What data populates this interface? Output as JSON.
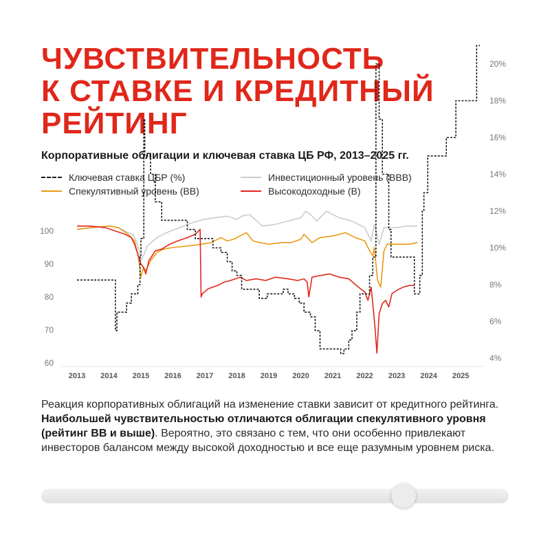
{
  "title_lines": [
    "ЧУВСТВИТЕЛЬНОСТЬ",
    "К СТАВКЕ И КРЕДИТНЫЙ",
    "РЕЙТИНГ"
  ],
  "colors": {
    "accent": "#e0271a",
    "key_rate": "#1a1a1a",
    "bbb": "#c9ccd1",
    "bb": "#ea9a12",
    "b": "#e0271a"
  },
  "chart_data": {
    "type": "line",
    "title": "Корпоративные облигации и ключевая ставка ЦБ РФ, 2013–2025 гг.",
    "legend_position": "top",
    "grid": false,
    "x_ticks": [
      "2013",
      "2014",
      "2015",
      "2016",
      "2017",
      "2018",
      "2019",
      "2020",
      "2021",
      "2022",
      "2023",
      "2024",
      "2025"
    ],
    "y_left_ticks": [
      "60",
      "70",
      "80",
      "90",
      "100"
    ],
    "y_right_ticks": [
      "4%",
      "6%",
      "8%",
      "10%",
      "12%",
      "14%",
      "16%",
      "18%",
      "20%"
    ],
    "y_left_range": [
      60,
      102
    ],
    "y_right_range": [
      4,
      20
    ],
    "x_range": [
      2013,
      2025.6
    ],
    "series": [
      {
        "name": "Ключевая ставка ЦБР (%)",
        "axis": "right",
        "style": "dashed-step",
        "x": [
          2013.0,
          2013.65,
          2014.2,
          2014.25,
          2014.55,
          2014.7,
          2014.9,
          2014.97,
          2015.0,
          2015.09,
          2015.12,
          2015.3,
          2015.45,
          2015.65,
          2016.45,
          2016.7,
          2017.25,
          2017.5,
          2017.7,
          2017.85,
          2018.0,
          2018.15,
          2018.7,
          2018.95,
          2019.45,
          2019.6,
          2019.8,
          2019.95,
          2020.1,
          2020.3,
          2020.45,
          2020.6,
          2021.25,
          2021.35,
          2021.5,
          2021.6,
          2021.75,
          2021.85,
          2022.15,
          2022.25,
          2022.35,
          2022.45,
          2022.55,
          2022.75,
          2022.82,
          2023.55,
          2023.65,
          2023.72,
          2023.8,
          2023.85,
          2023.97,
          2024.55,
          2024.7,
          2024.85,
          2025.5
        ],
        "y": [
          8.25,
          8.25,
          5.5,
          6.5,
          7,
          7.5,
          8,
          9.5,
          10.5,
          17,
          15,
          14,
          12.5,
          11.5,
          11,
          10.5,
          10,
          9.75,
          9.25,
          8.75,
          8.5,
          7.75,
          7.25,
          7.5,
          7.75,
          7.5,
          7.25,
          7,
          6.5,
          6.25,
          5.5,
          4.5,
          4.25,
          4.5,
          5,
          5.5,
          6.5,
          7.5,
          8.5,
          9.5,
          20,
          17,
          14,
          11,
          9.5,
          7.5,
          7.5,
          8.5,
          12,
          13,
          15,
          16,
          16,
          18,
          21
        ]
      },
      {
        "name": "Инвестиционный уровень (BBB)",
        "axis": "left",
        "x": [
          2013.0,
          2013.5,
          2014.0,
          2014.3,
          2014.6,
          2014.75,
          2014.85,
          2014.95,
          2015.0,
          2015.1,
          2015.2,
          2015.5,
          2015.8,
          2016.2,
          2016.6,
          2016.95,
          2017.3,
          2017.7,
          2018.0,
          2018.15,
          2018.4,
          2018.8,
          2019.2,
          2019.6,
          2020.0,
          2020.15,
          2020.3,
          2020.5,
          2020.8,
          2021.2,
          2021.6,
          2022.0,
          2022.1,
          2022.2,
          2022.3,
          2022.45,
          2022.6,
          2022.8,
          2023.0,
          2023.3,
          2023.65
        ],
        "y": [
          100.5,
          101,
          101.5,
          101,
          99.5,
          99,
          97,
          94,
          91,
          93,
          95.5,
          98,
          99.5,
          101,
          102.5,
          103.5,
          104,
          104.5,
          103.5,
          104.5,
          105,
          101.5,
          102,
          103,
          104,
          106,
          105,
          103,
          106,
          104,
          103,
          101,
          99,
          97,
          102,
          96,
          101,
          101,
          101,
          101.5,
          101.5
        ]
      },
      {
        "name": "Спекулятивный уровень (BB)",
        "axis": "left",
        "x": [
          2013.0,
          2013.4,
          2014.0,
          2014.3,
          2014.6,
          2014.8,
          2014.9,
          2014.95,
          2015.0,
          2015.08,
          2015.15,
          2015.3,
          2015.5,
          2015.7,
          2016.0,
          2016.5,
          2016.9,
          2017.2,
          2017.5,
          2017.7,
          2017.9,
          2018.1,
          2018.3,
          2018.5,
          2018.7,
          2019.0,
          2019.4,
          2019.7,
          2020.0,
          2020.1,
          2020.2,
          2020.35,
          2020.6,
          2021.0,
          2021.4,
          2021.7,
          2022.0,
          2022.15,
          2022.25,
          2022.3,
          2022.4,
          2022.5,
          2022.6,
          2022.7,
          2022.8,
          2023.0,
          2023.4,
          2023.65
        ],
        "y": [
          100.5,
          101,
          101.5,
          101,
          99,
          97,
          93,
          90,
          86,
          89,
          88,
          91,
          93.5,
          94.5,
          95,
          95.5,
          96,
          96.5,
          98,
          97,
          97.5,
          98.5,
          99.5,
          97,
          96.5,
          96,
          96.5,
          96.5,
          97.5,
          99,
          98,
          96.5,
          98,
          98.5,
          99.5,
          98,
          97,
          94,
          92.5,
          95,
          85,
          83,
          94,
          96,
          96,
          96,
          96,
          96.5
        ]
      },
      {
        "name": "Высокодоходные (B)",
        "axis": "left",
        "x": [
          2013.0,
          2013.4,
          2013.9,
          2014.2,
          2014.5,
          2014.7,
          2014.8,
          2014.9,
          2015.0,
          2015.08,
          2015.15,
          2015.25,
          2015.45,
          2015.65,
          2015.9,
          2016.15,
          2016.45,
          2016.7,
          2016.85,
          2016.88,
          2016.92,
          2017.1,
          2017.4,
          2017.6,
          2017.8,
          2018.1,
          2018.3,
          2018.6,
          2018.9,
          2019.2,
          2019.6,
          2019.9,
          2020.1,
          2020.2,
          2020.25,
          2020.35,
          2020.6,
          2020.9,
          2021.2,
          2021.5,
          2021.8,
          2022.0,
          2022.1,
          2022.2,
          2022.28,
          2022.32,
          2022.38,
          2022.45,
          2022.55,
          2022.65,
          2022.75,
          2022.85,
          2023.0,
          2023.2,
          2023.4,
          2023.55
        ],
        "y": [
          101.5,
          101.5,
          101,
          100,
          99,
          98,
          96,
          93,
          90,
          89,
          87,
          91,
          94,
          94.5,
          96,
          97,
          98,
          99,
          100.5,
          80,
          81,
          82.5,
          83.5,
          84.5,
          85,
          86,
          85,
          85.5,
          85,
          86,
          85.5,
          85,
          85.5,
          84.5,
          80,
          86,
          86.5,
          87,
          86,
          85.5,
          83,
          81.5,
          79,
          83,
          75,
          70.5,
          63,
          75,
          78,
          79,
          77,
          81,
          82,
          83,
          83.5,
          83.5
        ]
      }
    ]
  },
  "legend": [
    {
      "label": "Ключевая ставка ЦБР (%)"
    },
    {
      "label": "Инвестиционный уровень (BBB)"
    },
    {
      "label": "Спекулятивный уровень (BB)"
    },
    {
      "label": "Высокодоходные (B)"
    }
  ],
  "body": {
    "part1": "Реакция корпоративных облигаций на изменение ставки зависит от кредитного рейтинга. ",
    "bold": "Наибольшей чувствительностью отличаются облигации спекулятивного уровня (рейтинг BB и выше)",
    "part2": ". Вероятно, это связано с тем, что они особенно привлекают инвесторов балансом между высокой доходностью и все еще разумным уровнем риска."
  },
  "slider": {
    "value": 0.775
  }
}
